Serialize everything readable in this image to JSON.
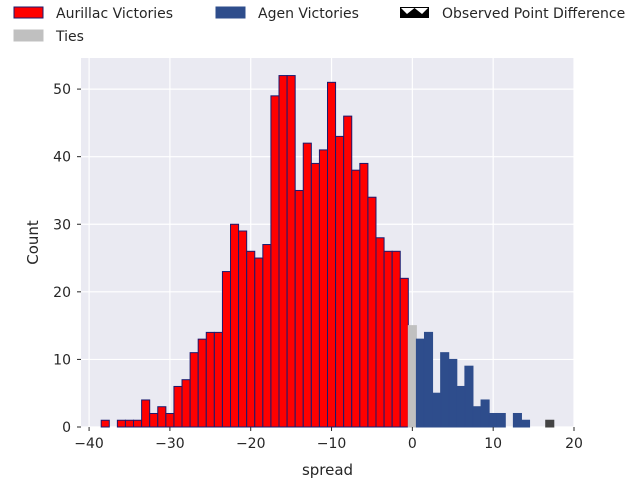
{
  "chart_data": {
    "type": "bar",
    "title": "",
    "xlabel": "spread",
    "ylabel": "Count",
    "xlim": [
      -41,
      20
    ],
    "ylim": [
      0,
      54.6
    ],
    "xticks": [
      -40,
      -30,
      -20,
      -10,
      0,
      10,
      20
    ],
    "yticks": [
      0,
      10,
      20,
      30,
      40,
      50
    ],
    "grid": true,
    "legend_position": "top",
    "colors": {
      "aurillac": "#ff0000",
      "aurillac_edge": "#1a1a6e",
      "agen": "#2e4d8c",
      "ties": "#c0c0c0",
      "observed": "#444444",
      "background": "#eaeaf2",
      "grid": "#ffffff"
    },
    "legend": [
      {
        "key": "aurillac",
        "label": "Aurillac Victories"
      },
      {
        "key": "agen",
        "label": "Agen Victories"
      },
      {
        "key": "observed",
        "label": "Observed Point Difference"
      },
      {
        "key": "ties",
        "label": "Ties"
      }
    ],
    "series": [
      {
        "key": "aurillac",
        "x": [
          -38,
          -36,
          -35,
          -34,
          -33,
          -32,
          -31,
          -30,
          -29,
          -28,
          -27,
          -26,
          -25,
          -24,
          -23,
          -22,
          -21,
          -20,
          -19,
          -18,
          -17,
          -16,
          -15,
          -14,
          -13,
          -12,
          -11,
          -10,
          -9,
          -8,
          -7,
          -6,
          -5,
          -4,
          -3,
          -2,
          -1
        ],
        "values": [
          1,
          1,
          1,
          1,
          4,
          2,
          3,
          2,
          6,
          7,
          11,
          13,
          14,
          14,
          23,
          30,
          29,
          26,
          25,
          27,
          49,
          52,
          52,
          35,
          42,
          39,
          41,
          51,
          43,
          46,
          38,
          39,
          34,
          28,
          26,
          26,
          22
        ]
      },
      {
        "key": "ties",
        "x": [
          0
        ],
        "values": [
          15
        ]
      },
      {
        "key": "agen",
        "x": [
          1,
          2,
          3,
          4,
          5,
          6,
          7,
          8,
          9,
          10,
          11,
          13,
          14
        ],
        "values": [
          13,
          14,
          5,
          11,
          10,
          6,
          9,
          3,
          4,
          2,
          2,
          2,
          1
        ]
      },
      {
        "key": "observed",
        "x": [
          17
        ],
        "values": [
          1
        ]
      }
    ]
  }
}
